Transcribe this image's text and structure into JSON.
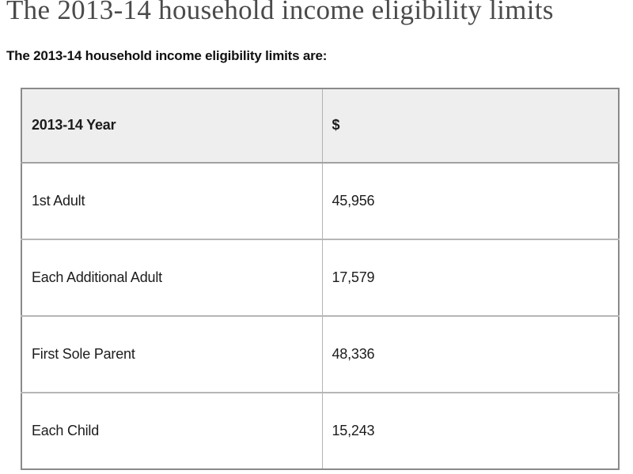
{
  "page": {
    "title": "The 2013-14 household income eligibility limits",
    "intro": "The 2013-14 household income eligibility limits are:"
  },
  "table": {
    "columns": [
      "2013-14 Year",
      "$"
    ],
    "rows": [
      {
        "label": "1st Adult",
        "value": "45,956"
      },
      {
        "label": "Each Additional Adult",
        "value": "17,579"
      },
      {
        "label": "First Sole Parent",
        "value": "48,336"
      },
      {
        "label": "Each Child",
        "value": "15,243"
      }
    ]
  },
  "colors": {
    "header_bg": "#eeeeee",
    "outer_border": "#8a8a8a",
    "inner_border": "#b3b3b3",
    "row_bg": "#ffffff",
    "title_color": "#4a4a4a",
    "text_color": "#1c1c1c"
  }
}
